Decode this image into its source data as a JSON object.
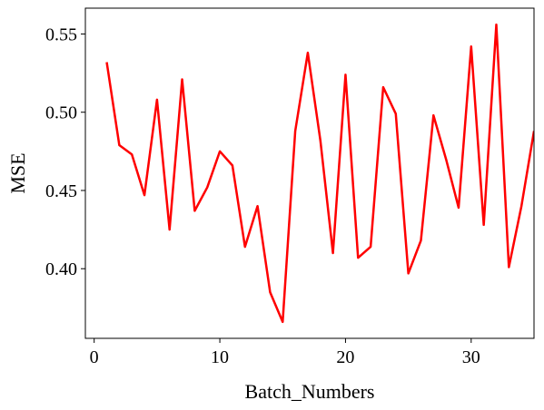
{
  "chart_data": {
    "type": "line",
    "xlabel": "Batch_Numbers",
    "ylabel": "MSE",
    "xlim": [
      -0.7,
      35
    ],
    "ylim": [
      0.3555,
      0.5665
    ],
    "xticks": [
      0,
      10,
      20,
      30
    ],
    "xtick_labels": [
      "0",
      "10",
      "20",
      "30"
    ],
    "yticks": [
      0.4,
      0.45,
      0.5,
      0.55
    ],
    "ytick_labels": [
      "0.40",
      "0.45",
      "0.50",
      "0.55"
    ],
    "grid": false,
    "series": [
      {
        "color": "#ff0000",
        "x": [
          1,
          2,
          3,
          4,
          5,
          6,
          7,
          8,
          9,
          10,
          11,
          12,
          13,
          14,
          15,
          16,
          17,
          18,
          19,
          20,
          21,
          22,
          23,
          24,
          25,
          26,
          27,
          28,
          29,
          30,
          31,
          32,
          33,
          34,
          35
        ],
        "y": [
          0.532,
          0.479,
          0.473,
          0.447,
          0.508,
          0.425,
          0.521,
          0.437,
          0.452,
          0.475,
          0.466,
          0.414,
          0.44,
          0.385,
          0.366,
          0.488,
          0.538,
          0.482,
          0.41,
          0.524,
          0.407,
          0.414,
          0.516,
          0.499,
          0.397,
          0.418,
          0.498,
          0.47,
          0.439,
          0.542,
          0.428,
          0.556,
          0.401,
          0.44,
          0.488
        ]
      }
    ]
  }
}
